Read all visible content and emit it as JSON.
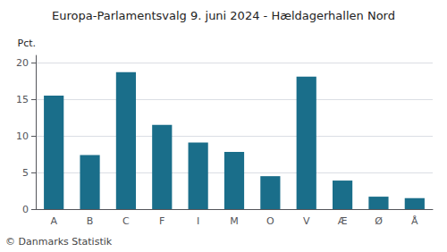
{
  "chart_data": {
    "type": "bar",
    "title": "Europa-Parlamentsvalg 9. juni 2024 - Hældagerhallen Nord",
    "categories": [
      "A",
      "B",
      "C",
      "F",
      "I",
      "M",
      "O",
      "V",
      "Æ",
      "Ø",
      "Å"
    ],
    "values": [
      15.5,
      7.4,
      18.7,
      11.5,
      9.1,
      7.8,
      4.5,
      18.1,
      3.9,
      1.7,
      1.5
    ],
    "color": "#1a6e8a",
    "ylabel": "Pct.",
    "ylim": [
      0,
      21
    ],
    "yticks": [
      0,
      5,
      10,
      15,
      20
    ],
    "grid": true,
    "annotations": [
      "© Danmarks Statistik"
    ]
  }
}
